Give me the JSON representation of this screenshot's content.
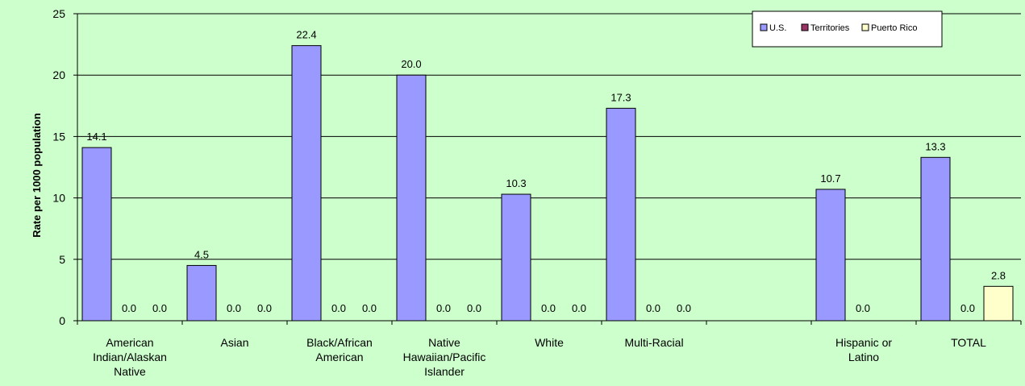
{
  "chart_data": {
    "type": "bar",
    "title": "",
    "xlabel": "",
    "ylabel": "Rate per 1000 population",
    "ylim": [
      0,
      25
    ],
    "yticks": [
      0,
      5,
      10,
      15,
      20,
      25
    ],
    "grid": true,
    "legend_position": "top-right",
    "categories": [
      "American Indian/Alaskan Native",
      "Asian",
      "Black/African American",
      "Native Hawaiian/Pacific Islander",
      "White",
      "Multi-Racial",
      "",
      "Hispanic or Latino",
      "TOTAL"
    ],
    "category_lines": [
      [
        "American",
        "Indian/Alaskan",
        "Native"
      ],
      [
        "Asian"
      ],
      [
        "Black/African",
        "American"
      ],
      [
        "Native",
        "Hawaiian/Pacific",
        "Islander"
      ],
      [
        "White"
      ],
      [
        "Multi-Racial"
      ],
      [],
      [
        "Hispanic or",
        "Latino"
      ],
      [
        "TOTAL"
      ]
    ],
    "series": [
      {
        "name": "U.S.",
        "color": "#9999ff",
        "values": [
          14.1,
          4.5,
          22.4,
          20.0,
          10.3,
          17.3,
          null,
          10.7,
          13.3
        ],
        "labels": [
          "14.1",
          "4.5",
          "22.4",
          "20.0",
          "10.3",
          "17.3",
          null,
          "10.7",
          "13.3"
        ]
      },
      {
        "name": "Territories",
        "color": "#993366",
        "values": [
          0.0,
          0.0,
          0.0,
          0.0,
          0.0,
          0.0,
          null,
          0.0,
          0.0
        ],
        "labels": [
          "0.0",
          "0.0",
          "0.0",
          "0.0",
          "0.0",
          "0.0",
          null,
          "0.0",
          "0.0"
        ]
      },
      {
        "name": "Puerto Rico",
        "color": "#ffffcc",
        "values": [
          0.0,
          0.0,
          0.0,
          0.0,
          0.0,
          0.0,
          null,
          null,
          2.8
        ],
        "labels": [
          "0.0",
          "0.0",
          "0.0",
          "0.0",
          "0.0",
          "0.0",
          null,
          null,
          "2.8"
        ]
      }
    ],
    "colors": {
      "background": "#ccffcc",
      "gridline": "#000000"
    }
  }
}
